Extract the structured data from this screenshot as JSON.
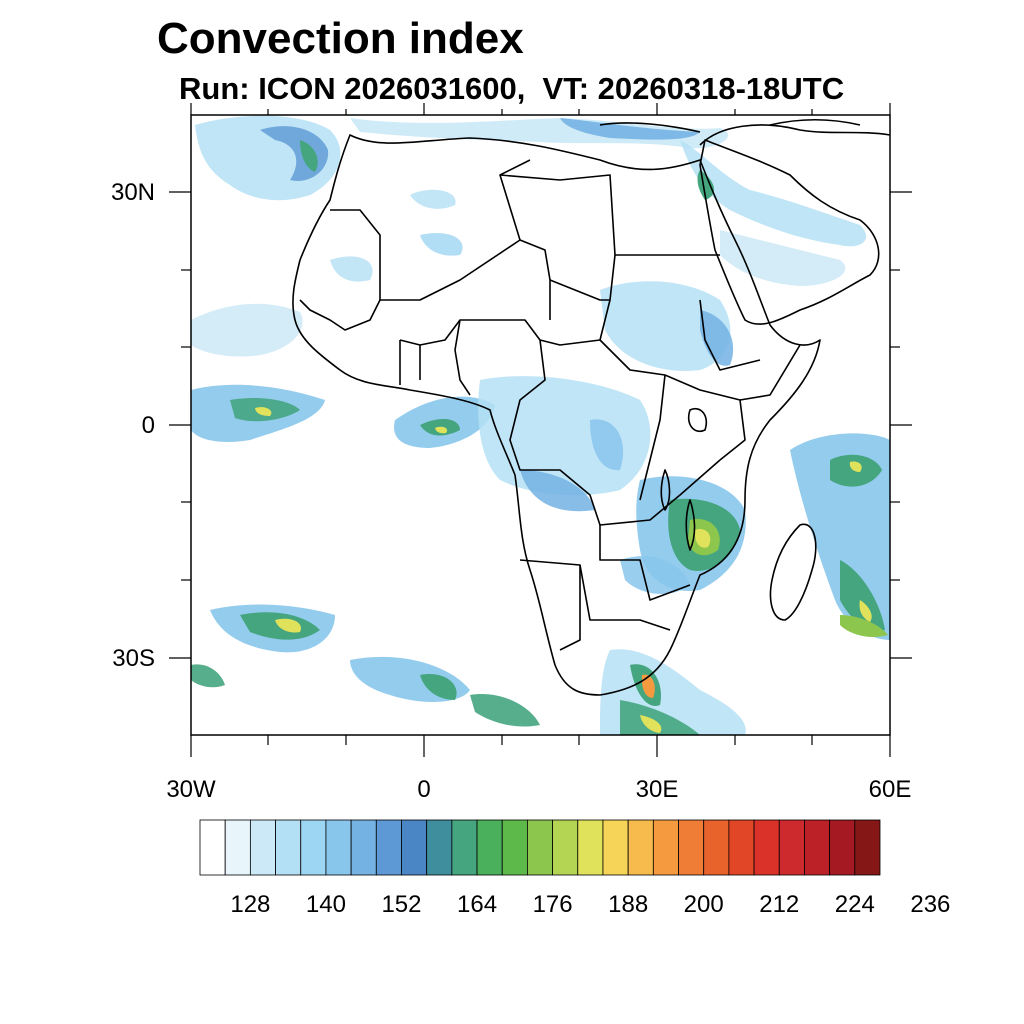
{
  "title": "Convection index",
  "subtitle": "Run: ICON 2026031600,  VT: 20260318-18UTC",
  "lat_labels": [
    "30N",
    "0",
    "30S"
  ],
  "lon_labels": [
    "30W",
    "0",
    "30E",
    "60E"
  ],
  "colorbar": {
    "colors": [
      "#ffffff",
      "#e8f5fb",
      "#cbe9f7",
      "#b4e0f5",
      "#9dd6f2",
      "#88c6ec",
      "#73b2e3",
      "#5d99d4",
      "#4a86c5",
      "#3f8e9e",
      "#45a57f",
      "#4bb05b",
      "#5dba4a",
      "#8cc64c",
      "#b4d553",
      "#e0e25b",
      "#f5d457",
      "#f7bb4d",
      "#f59a3f",
      "#f07d35",
      "#e8622c",
      "#e14627",
      "#da3128",
      "#cc2a2c",
      "#bb2127",
      "#a51a22",
      "#861717"
    ],
    "tick_labels": [
      "128",
      "140",
      "152",
      "164",
      "176",
      "188",
      "200",
      "212",
      "224",
      "236"
    ]
  }
}
